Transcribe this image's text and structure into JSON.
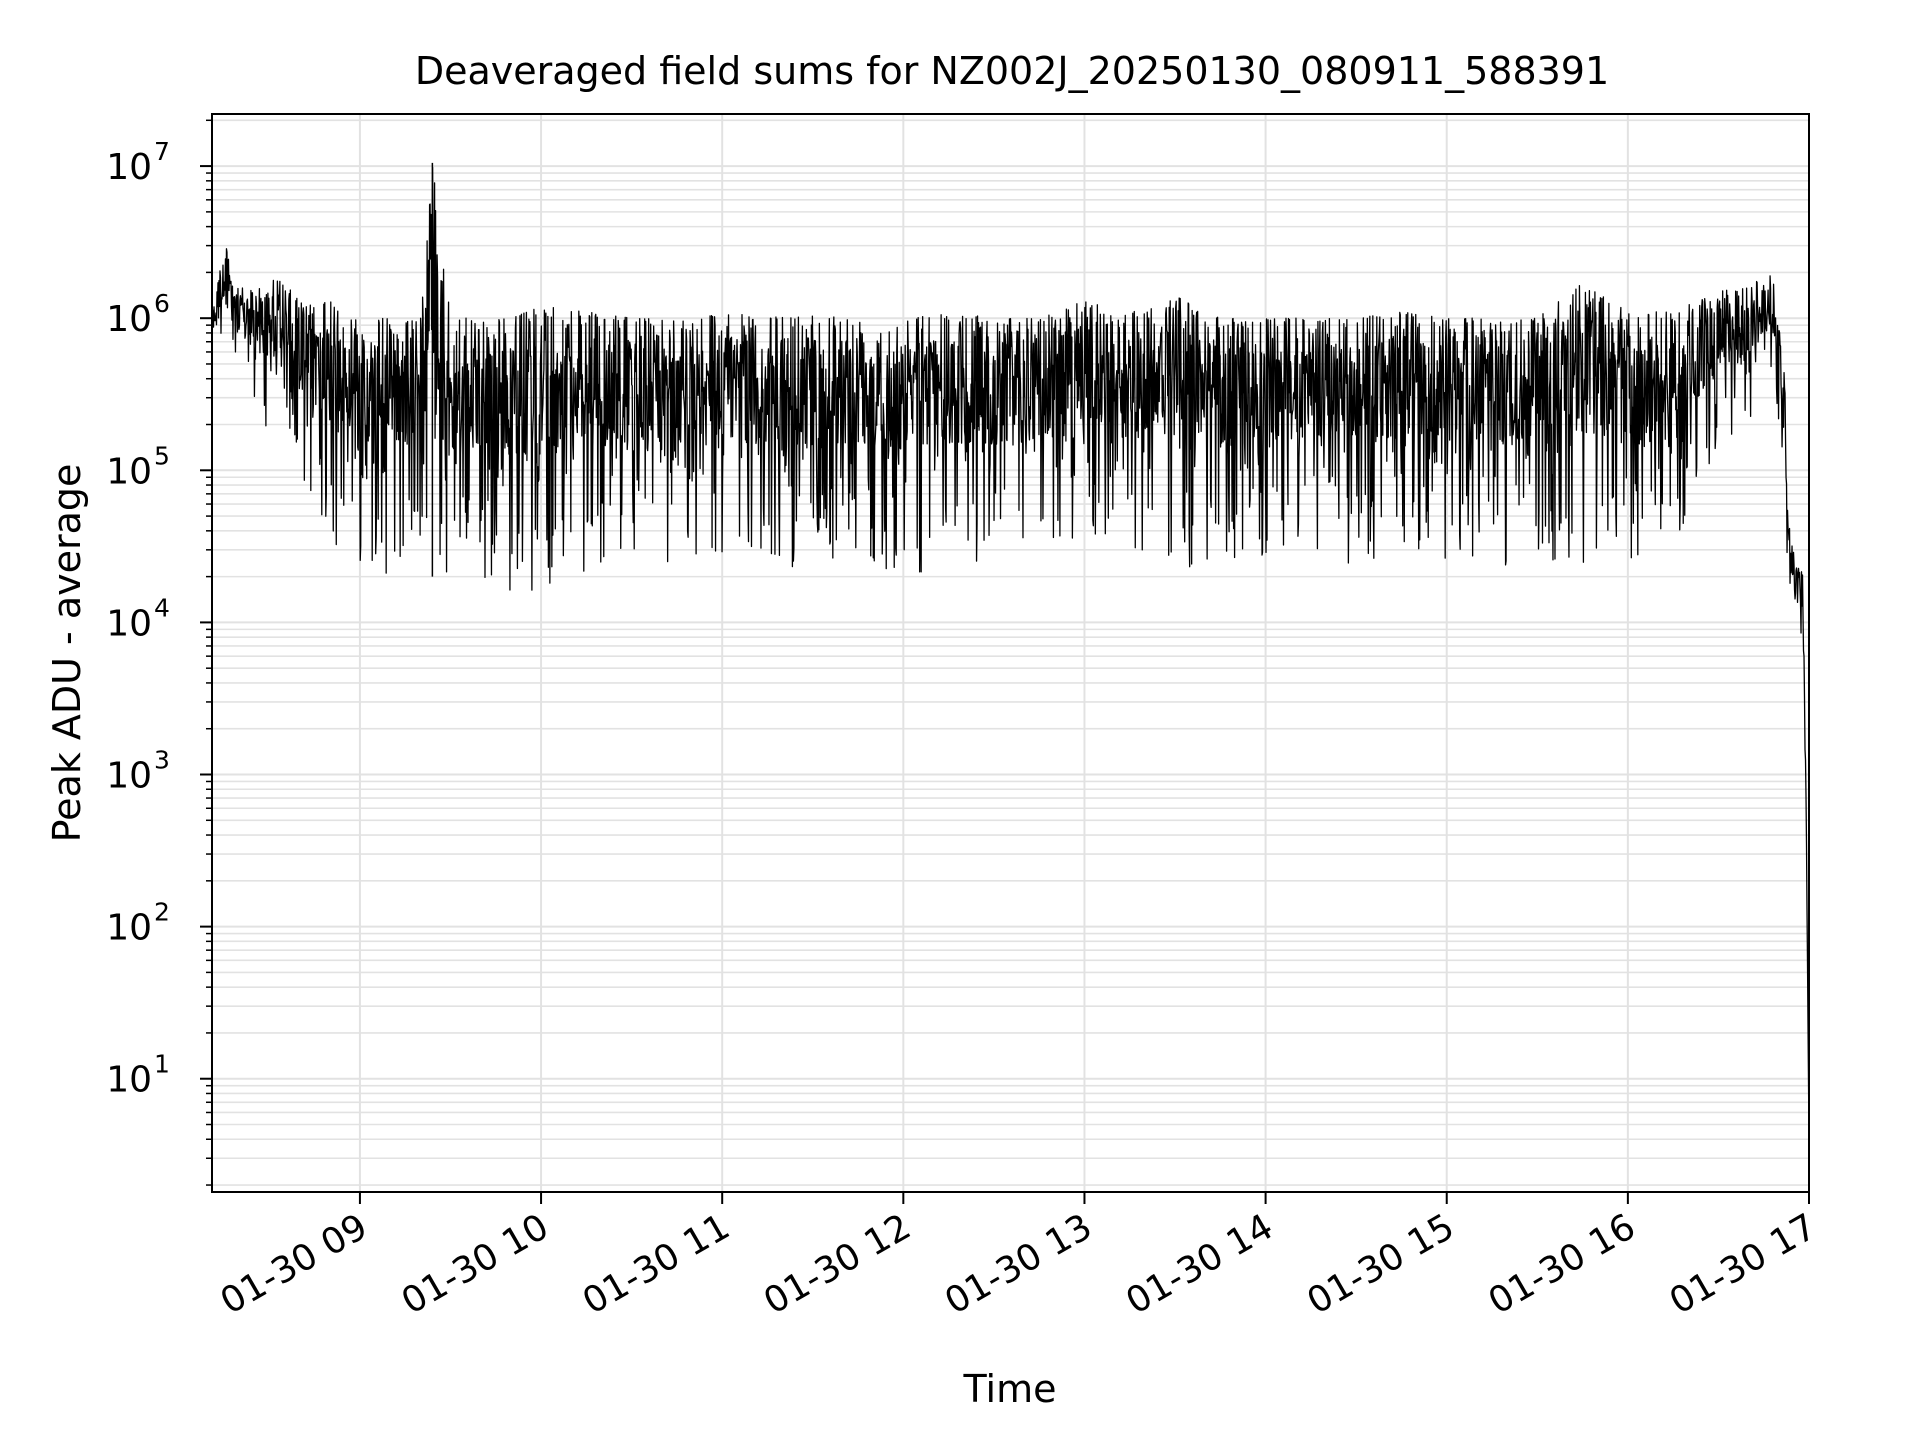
{
  "chart_data": {
    "type": "line",
    "title": "Deaveraged field sums for NZ002J_20250130_080911_588391",
    "xlabel": "Time",
    "ylabel": "Peak ADU - average",
    "yscale": "log",
    "xlim": [
      "2025-01-30 08:11",
      "2025-01-30 17:00"
    ],
    "ylim": [
      1.8,
      22000000
    ],
    "x_ticks": [
      {
        "label": "01-30 09",
        "time": "2025-01-30 09:00"
      },
      {
        "label": "01-30 10",
        "time": "2025-01-30 10:00"
      },
      {
        "label": "01-30 11",
        "time": "2025-01-30 11:00"
      },
      {
        "label": "01-30 12",
        "time": "2025-01-30 12:00"
      },
      {
        "label": "01-30 13",
        "time": "2025-01-30 13:00"
      },
      {
        "label": "01-30 14",
        "time": "2025-01-30 14:00"
      },
      {
        "label": "01-30 15",
        "time": "2025-01-30 15:00"
      },
      {
        "label": "01-30 16",
        "time": "2025-01-30 16:00"
      },
      {
        "label": "01-30 17",
        "time": "2025-01-30 17:00"
      }
    ],
    "y_ticks": [
      {
        "base": "10",
        "exp": "1",
        "value": 10
      },
      {
        "base": "10",
        "exp": "2",
        "value": 100
      },
      {
        "base": "10",
        "exp": "3",
        "value": 1000
      },
      {
        "base": "10",
        "exp": "4",
        "value": 10000
      },
      {
        "base": "10",
        "exp": "5",
        "value": 100000
      },
      {
        "base": "10",
        "exp": "6",
        "value": 1000000
      },
      {
        "base": "10",
        "exp": "7",
        "value": 10000000
      }
    ],
    "grid": "both (major and minor)",
    "line_color": "#000000",
    "series": [
      {
        "x": [
          "2025-01-30 08:11",
          "2025-01-30 08:15",
          "2025-01-30 08:20",
          "2025-01-30 08:25",
          "2025-01-30 08:30",
          "2025-01-30 08:35",
          "2025-01-30 08:40",
          "2025-01-30 08:45",
          "2025-01-30 08:50",
          "2025-01-30 08:55",
          "2025-01-30 09:00",
          "2025-01-30 09:10",
          "2025-01-30 09:20",
          "2025-01-30 09:24",
          "2025-01-30 09:30",
          "2025-01-30 09:40",
          "2025-01-30 09:50",
          "2025-01-30 10:00",
          "2025-01-30 10:15",
          "2025-01-30 10:30",
          "2025-01-30 10:45",
          "2025-01-30 11:00",
          "2025-01-30 11:15",
          "2025-01-30 11:30",
          "2025-01-30 11:45",
          "2025-01-30 12:00",
          "2025-01-30 12:15",
          "2025-01-30 12:30",
          "2025-01-30 12:45",
          "2025-01-30 13:00",
          "2025-01-30 13:15",
          "2025-01-30 13:30",
          "2025-01-30 13:45",
          "2025-01-30 14:00",
          "2025-01-30 14:15",
          "2025-01-30 14:30",
          "2025-01-30 14:45",
          "2025-01-30 15:00",
          "2025-01-30 15:15",
          "2025-01-30 15:30",
          "2025-01-30 15:45",
          "2025-01-30 16:00",
          "2025-01-30 16:15",
          "2025-01-30 16:30",
          "2025-01-30 16:40",
          "2025-01-30 16:45",
          "2025-01-30 16:48",
          "2025-01-30 16:50",
          "2025-01-30 16:52",
          "2025-01-30 16:53",
          "2025-01-30 16:54",
          "2025-01-30 16:56",
          "2025-01-30 16:58",
          "2025-01-30 16:59",
          "2025-01-30 17:00"
        ],
        "high": [
          1200000,
          3200000,
          1600000,
          1500000,
          1900000,
          1700000,
          1300000,
          1200000,
          1300000,
          1100000,
          1000000,
          1000000,
          950000,
          10500000,
          1000000,
          1000000,
          1000000,
          1200000,
          1100000,
          1000000,
          1000000,
          1100000,
          1000000,
          1100000,
          1000000,
          1000000,
          1100000,
          1000000,
          1000000,
          1300000,
          1100000,
          1400000,
          1000000,
          1000000,
          1000000,
          1000000,
          1100000,
          1000000,
          1000000,
          1000000,
          1700000,
          1100000,
          1100000,
          1500000,
          1600000,
          1900000,
          1900000,
          900000,
          400000,
          60000,
          34000,
          30000,
          20000,
          1000,
          4
        ],
        "low": [
          500000,
          550000,
          350000,
          220000,
          180000,
          90000,
          80000,
          60000,
          26000,
          40000,
          25000,
          20000,
          25000,
          20000,
          16000,
          18000,
          16000,
          14000,
          22000,
          25000,
          22000,
          25000,
          22000,
          24000,
          23000,
          22000,
          20000,
          24000,
          25000,
          35000,
          30000,
          21000,
          24000,
          25000,
          26000,
          24000,
          23000,
          25000,
          22000,
          24000,
          22000,
          23000,
          28000,
          150000,
          200000,
          400000,
          400000,
          200000,
          60000,
          20000,
          12000,
          15000,
          5000,
          300,
          4
        ]
      }
    ]
  }
}
